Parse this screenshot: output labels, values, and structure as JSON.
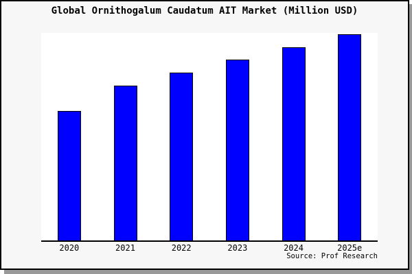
{
  "colors": {
    "page_bg": "#ffffff",
    "frame_bg": "#f7f7f7",
    "frame_border": "#000000",
    "frame_shadow": "#999999",
    "plot_bg": "#ffffff",
    "axis": "#000000",
    "bar_fill": "#0000ff",
    "bar_border": "#000000",
    "text": "#000000"
  },
  "chart_data": {
    "type": "bar",
    "title": "Global Ornithogalum Caudatum AIT Market (Million USD)",
    "categories": [
      "2020",
      "2021",
      "2022",
      "2023",
      "2024",
      "2025e"
    ],
    "values": [
      62.8,
      75.1,
      81.4,
      87.7,
      93.7,
      100
    ],
    "values_basis": "relative units; y-axis shows no tick labels, 2025e bar normalized to 100",
    "ylim": [
      0,
      100.7
    ],
    "xlabel": "",
    "ylabel": "",
    "grid": false,
    "legend": false,
    "source": "Source: Prof Research"
  }
}
